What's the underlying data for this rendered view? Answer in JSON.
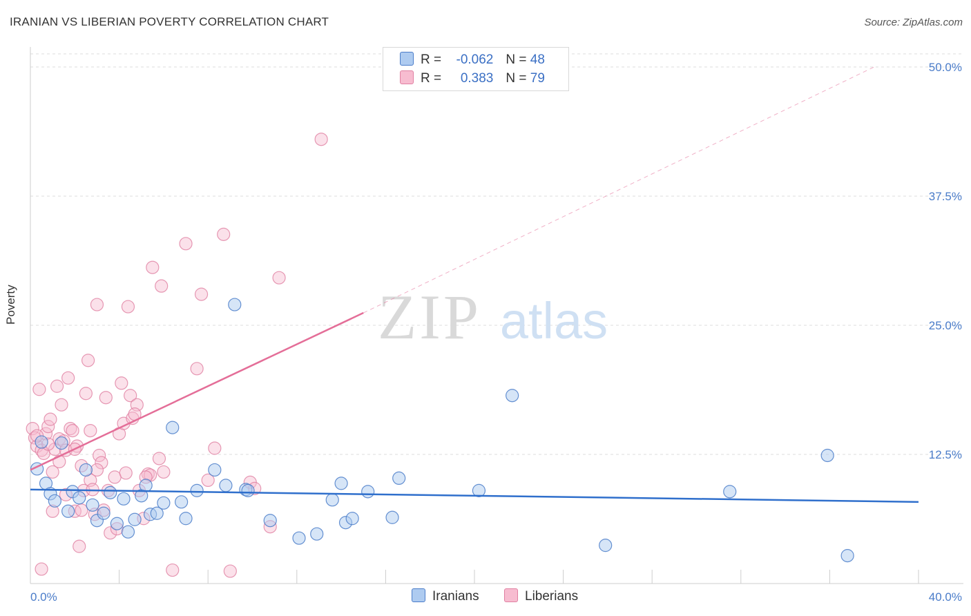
{
  "title": "IRANIAN VS LIBERIAN POVERTY CORRELATION CHART",
  "source": "Source: ZipAtlas.com",
  "watermark": {
    "zip": "ZIP",
    "atlas": "atlas"
  },
  "colors": {
    "iranians_fill": "#aecbf0",
    "iranians_stroke": "#4a7cc9",
    "iranians_line": "#2f6fcc",
    "liberians_fill": "#f7bcd0",
    "liberians_stroke": "#e07fa1",
    "liberians_line": "#e46e98",
    "tick": "#4a7cc9",
    "grid": "#dddddd"
  },
  "legend": {
    "iranians": {
      "r_label": "R = ",
      "r_value": "-0.062",
      "n_label": "N = ",
      "n_value": "48"
    },
    "liberians": {
      "r_label": "R = ",
      "r_value": "0.383",
      "n_label": "N = ",
      "n_value": "79"
    }
  },
  "bottom_legend": {
    "iranians": "Iranians",
    "liberians": "Liberians"
  },
  "chart_data": {
    "type": "scatter",
    "title": "IRANIAN VS LIBERIAN POVERTY CORRELATION CHART",
    "xlabel": "",
    "ylabel": "Poverty",
    "xlim": [
      0,
      40
    ],
    "ylim": [
      0,
      50
    ],
    "x_tick_labels": [
      {
        "value": 0,
        "label": "0.0%"
      },
      {
        "value": 40,
        "label": "40.0%"
      }
    ],
    "y_tick_labels": [
      {
        "value": 12.5,
        "label": "12.5%"
      },
      {
        "value": 25,
        "label": "25.0%"
      },
      {
        "value": 37.5,
        "label": "37.5%"
      },
      {
        "value": 50,
        "label": "50.0%"
      }
    ],
    "grid": true,
    "series": [
      {
        "name": "Iranians",
        "r": -0.062,
        "n": 48,
        "trend": {
          "x": [
            0,
            40
          ],
          "y": [
            9.1,
            7.9
          ],
          "dashed_extension": false
        },
        "points": [
          [
            0.3,
            11.1
          ],
          [
            0.5,
            13.7
          ],
          [
            0.7,
            9.7
          ],
          [
            0.9,
            8.7
          ],
          [
            1.1,
            8.0
          ],
          [
            1.4,
            13.6
          ],
          [
            1.7,
            7.0
          ],
          [
            1.9,
            8.9
          ],
          [
            2.2,
            8.3
          ],
          [
            2.5,
            11.0
          ],
          [
            2.8,
            7.6
          ],
          [
            3.0,
            6.1
          ],
          [
            3.3,
            6.8
          ],
          [
            3.6,
            8.8
          ],
          [
            3.9,
            5.8
          ],
          [
            4.2,
            8.2
          ],
          [
            4.4,
            5.0
          ],
          [
            4.7,
            6.2
          ],
          [
            5.0,
            8.5
          ],
          [
            5.2,
            9.5
          ],
          [
            5.4,
            6.7
          ],
          [
            5.7,
            6.8
          ],
          [
            6.0,
            7.8
          ],
          [
            6.4,
            15.1
          ],
          [
            6.8,
            7.9
          ],
          [
            7.0,
            6.3
          ],
          [
            7.5,
            9.0
          ],
          [
            8.3,
            11.0
          ],
          [
            8.8,
            9.5
          ],
          [
            9.2,
            27.0
          ],
          [
            9.7,
            9.1
          ],
          [
            9.8,
            9.0
          ],
          [
            10.8,
            6.1
          ],
          [
            12.1,
            4.4
          ],
          [
            12.9,
            4.8
          ],
          [
            13.6,
            8.1
          ],
          [
            14.0,
            9.7
          ],
          [
            14.2,
            5.9
          ],
          [
            14.5,
            6.3
          ],
          [
            15.2,
            8.9
          ],
          [
            16.3,
            6.4
          ],
          [
            16.6,
            10.2
          ],
          [
            20.2,
            9.0
          ],
          [
            21.7,
            18.2
          ],
          [
            25.9,
            3.7
          ],
          [
            31.5,
            8.9
          ],
          [
            35.9,
            12.4
          ],
          [
            36.8,
            2.7
          ]
        ]
      },
      {
        "name": "Liberians",
        "r": 0.383,
        "n": 79,
        "trend": {
          "x": [
            0,
            15
          ],
          "y": [
            11.0,
            26.2
          ],
          "dashed_extension": true,
          "extension_to": [
            38,
            50
          ]
        },
        "points": [
          [
            0.1,
            15.0
          ],
          [
            0.2,
            14.1
          ],
          [
            0.3,
            13.3
          ],
          [
            0.4,
            18.8
          ],
          [
            0.5,
            12.9
          ],
          [
            0.6,
            12.6
          ],
          [
            0.7,
            14.5
          ],
          [
            0.8,
            15.2
          ],
          [
            0.9,
            15.9
          ],
          [
            1.0,
            7.0
          ],
          [
            1.1,
            13.0
          ],
          [
            1.2,
            19.1
          ],
          [
            1.3,
            14.0
          ],
          [
            1.4,
            17.3
          ],
          [
            1.5,
            13.8
          ],
          [
            1.6,
            12.9
          ],
          [
            1.7,
            19.9
          ],
          [
            1.8,
            15.0
          ],
          [
            1.9,
            14.8
          ],
          [
            2.0,
            7.0
          ],
          [
            2.1,
            13.3
          ],
          [
            2.2,
            3.6
          ],
          [
            2.3,
            11.4
          ],
          [
            2.4,
            9.0
          ],
          [
            2.5,
            18.4
          ],
          [
            2.6,
            21.6
          ],
          [
            2.7,
            10.0
          ],
          [
            2.8,
            9.1
          ],
          [
            2.9,
            6.7
          ],
          [
            3.0,
            27.0
          ],
          [
            3.1,
            12.4
          ],
          [
            3.2,
            11.7
          ],
          [
            3.3,
            7.1
          ],
          [
            3.4,
            18.0
          ],
          [
            3.5,
            9.0
          ],
          [
            3.6,
            4.9
          ],
          [
            3.8,
            10.3
          ],
          [
            3.9,
            5.3
          ],
          [
            4.0,
            14.5
          ],
          [
            4.1,
            19.4
          ],
          [
            4.2,
            15.5
          ],
          [
            4.3,
            10.7
          ],
          [
            4.4,
            26.8
          ],
          [
            4.5,
            18.2
          ],
          [
            4.6,
            16.0
          ],
          [
            4.8,
            17.3
          ],
          [
            4.9,
            9.0
          ],
          [
            5.1,
            6.3
          ],
          [
            5.3,
            10.6
          ],
          [
            5.4,
            10.5
          ],
          [
            5.5,
            30.6
          ],
          [
            5.8,
            12.1
          ],
          [
            5.9,
            28.8
          ],
          [
            6.0,
            10.8
          ],
          [
            6.4,
            1.3
          ],
          [
            7.0,
            32.9
          ],
          [
            7.5,
            20.8
          ],
          [
            7.7,
            28.0
          ],
          [
            8.0,
            10.0
          ],
          [
            8.3,
            13.1
          ],
          [
            8.7,
            33.8
          ],
          [
            9.0,
            1.2
          ],
          [
            9.9,
            9.8
          ],
          [
            10.1,
            9.2
          ],
          [
            10.8,
            5.5
          ],
          [
            11.2,
            29.6
          ],
          [
            13.1,
            43.0
          ],
          [
            0.5,
            1.4
          ],
          [
            1.3,
            11.8
          ],
          [
            0.8,
            13.5
          ],
          [
            2.0,
            13.0
          ],
          [
            2.3,
            7.1
          ],
          [
            3.0,
            11.0
          ],
          [
            0.3,
            14.3
          ],
          [
            1.6,
            8.6
          ],
          [
            4.7,
            16.4
          ],
          [
            5.2,
            10.3
          ],
          [
            1.0,
            10.8
          ],
          [
            2.7,
            14.8
          ]
        ]
      }
    ]
  }
}
